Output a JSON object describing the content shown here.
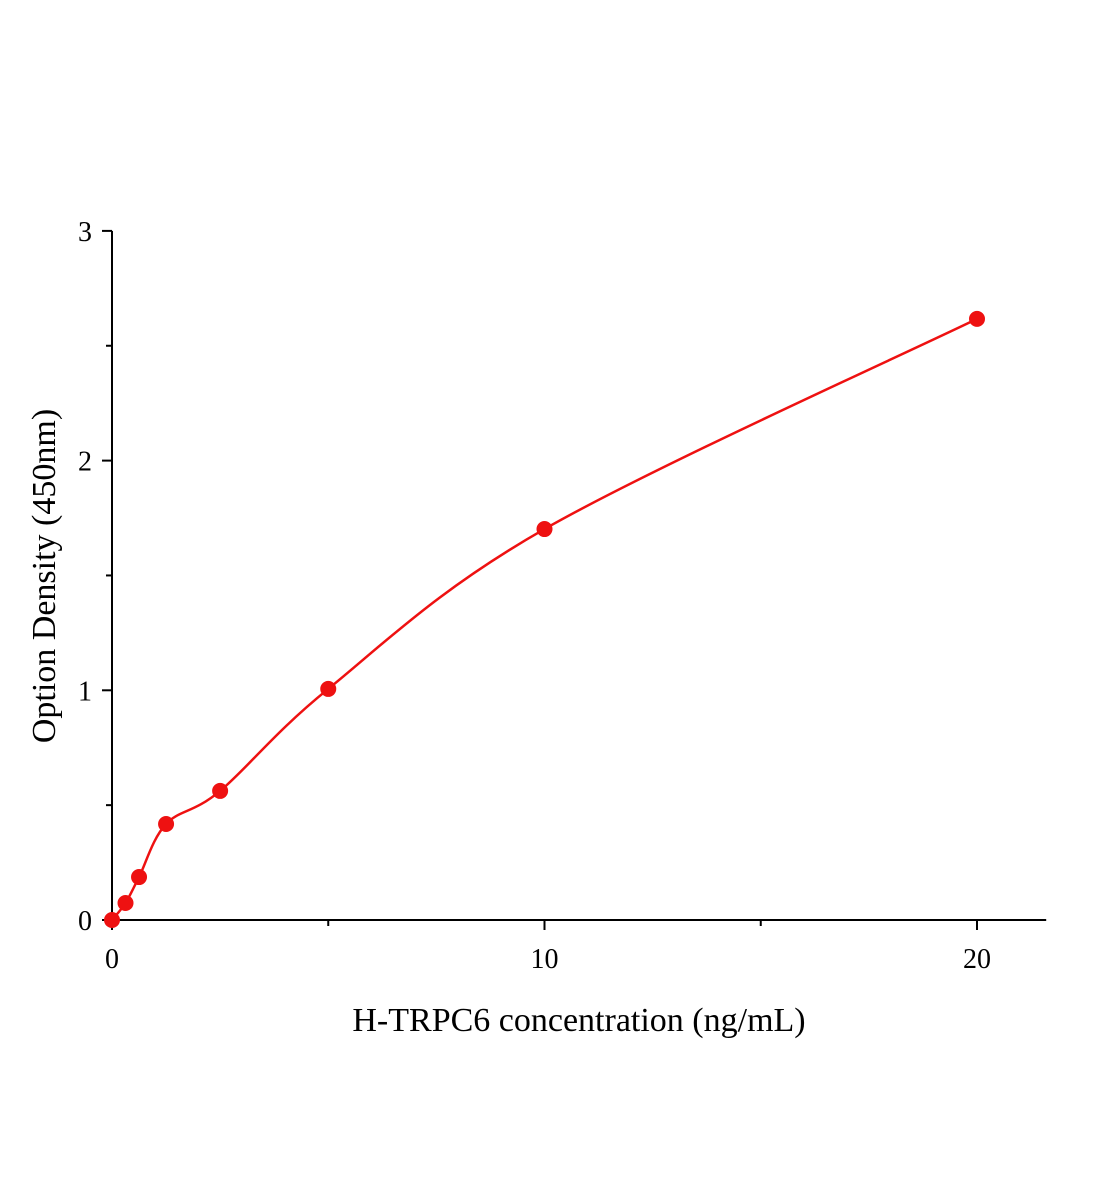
{
  "chart_data": {
    "type": "scatter",
    "title": "",
    "xlabel": "H-TRPC6 concentration (ng/mL)",
    "ylabel": "Option Density (450nm)",
    "xlim": [
      0,
      21.6
    ],
    "ylim": [
      0,
      3
    ],
    "x_ticks": [
      0,
      10,
      20
    ],
    "x_minor_ticks": [
      5,
      15
    ],
    "y_ticks": [
      0,
      1,
      2,
      3
    ],
    "y_minor_ticks": [
      0.5,
      1.5,
      2.5
    ],
    "grid": false,
    "colors": {
      "series": "#ee1111"
    },
    "series": [
      {
        "x": [
          0,
          0.3125,
          0.625,
          1.25,
          2.5,
          5,
          10,
          20
        ],
        "y": [
          0.0,
          0.074,
          0.187,
          0.418,
          0.562,
          1.006,
          1.702,
          2.617
        ],
        "fit_line": true
      }
    ]
  }
}
